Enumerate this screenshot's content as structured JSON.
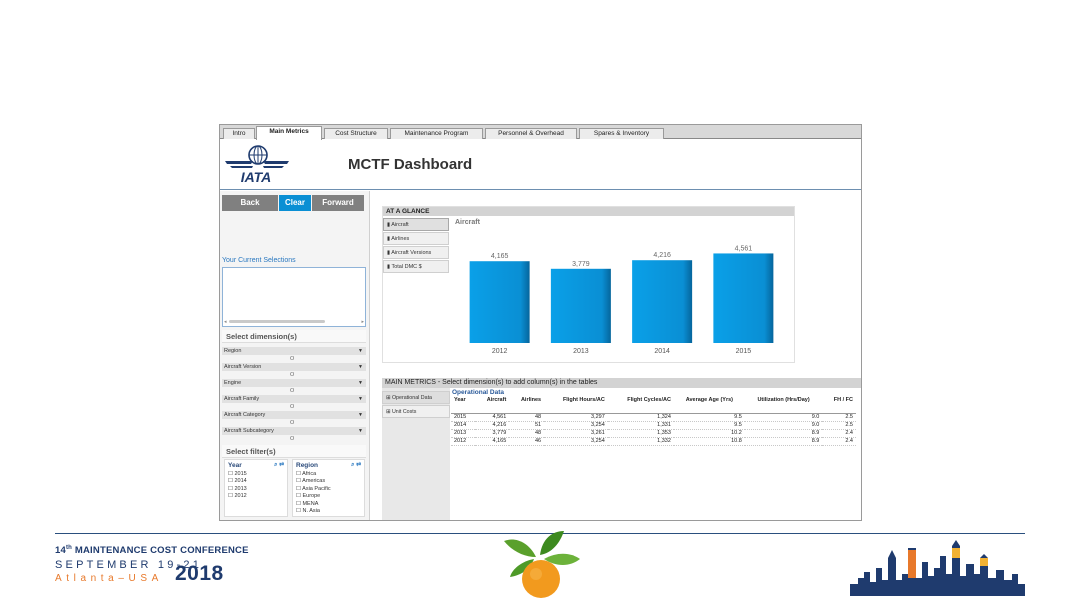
{
  "tabs": [
    "Intro",
    "Main Metrics",
    "Cost Structure",
    "Maintenance Program",
    "Personnel & Overhead",
    "Spares & Inventory"
  ],
  "active_tab": "Main Metrics",
  "logo_text": "IATA",
  "dashboard_title": "MCTF Dashboard",
  "nav": {
    "back": "Back",
    "clear": "Clear",
    "forward": "Forward"
  },
  "current_selections_label": "Your Current Selections",
  "select_dimensions_label": "Select dimension(s)",
  "dimensions": [
    "Region",
    "Aircraft Version",
    "Engine",
    "Aircraft Family",
    "Aircraft Category",
    "Aircraft Subcategory"
  ],
  "dimension_marker": "O",
  "select_filters_label": "Select filter(s)",
  "filters": {
    "year": {
      "label": "Year",
      "items": [
        "2015",
        "2014",
        "2013",
        "2012"
      ]
    },
    "region": {
      "label": "Region",
      "items": [
        "Africa",
        "Americas",
        "Asia Pacific",
        "Europe",
        "MENA",
        "N. Asia"
      ]
    }
  },
  "glance": {
    "header": "AT A GLANCE",
    "buttons": [
      "Aircraft",
      "Airlines",
      "Aircraft Versions",
      "Total DMC $"
    ],
    "active_button": "Aircraft"
  },
  "chart_data": {
    "type": "bar",
    "title": "Aircraft",
    "categories": [
      "2012",
      "2013",
      "2014",
      "2015"
    ],
    "values": [
      4165,
      3779,
      4216,
      4561
    ],
    "labels": [
      "4,165",
      "3,779",
      "4,216",
      "4,561"
    ],
    "ylim": [
      0,
      5500
    ],
    "grid": false,
    "bar_color": "#0a8fd4"
  },
  "metrics": {
    "header": "MAIN METRICS - Select dimension(s) to add column(s) in the tables",
    "buttons": [
      "Operational Data",
      "Unit Costs"
    ],
    "table_title": "Operational Data",
    "columns": [
      "Year",
      "Aircraft",
      "Airlines",
      "Flight Hours/AC",
      "Flight Cycles/AC",
      "Average Age (Yrs)",
      "Utilization (Hrs/Day)",
      "FH / FC"
    ],
    "rows": [
      [
        "2015",
        "4,561",
        "48",
        "3,297",
        "1,324",
        "9.5",
        "9.0",
        "2.5"
      ],
      [
        "2014",
        "4,216",
        "51",
        "3,254",
        "1,331",
        "9.5",
        "9.0",
        "2.5"
      ],
      [
        "2013",
        "3,779",
        "48",
        "3,261",
        "1,353",
        "10.2",
        "8.9",
        "2.4"
      ],
      [
        "2012",
        "4,165",
        "46",
        "3,254",
        "1,332",
        "10.8",
        "8.9",
        "2.4"
      ]
    ]
  },
  "footer": {
    "conference_num": "14",
    "conference_sup": "th",
    "conference_name": " MAINTENANCE COST CONFERENCE",
    "dates": "SEPTEMBER 19-21",
    "location": "Atlanta–USA",
    "year": "2018"
  },
  "colors": {
    "accent": "#0a8fd4",
    "navy": "#1f3b6e",
    "orange": "#e8792b"
  }
}
